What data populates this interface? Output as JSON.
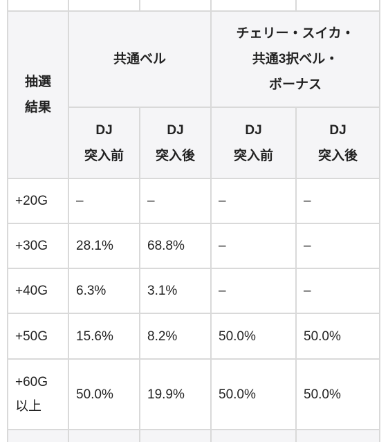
{
  "header": {
    "result_label": "抽選\n結果",
    "group_common_bell": "共通ベル",
    "group_cherry_etc": "チェリー・スイカ・\n共通3択ベル・\nボーナス",
    "sub_labels": [
      "DJ\n突入前",
      "DJ\n突入後",
      "DJ\n突入前",
      "DJ\n突入後"
    ]
  },
  "rows": [
    {
      "label": "+20G",
      "values": [
        "–",
        "–",
        "–",
        "–"
      ]
    },
    {
      "label": "+30G",
      "values": [
        "28.1%",
        "68.8%",
        "–",
        "–"
      ]
    },
    {
      "label": "+40G",
      "values": [
        "6.3%",
        "3.1%",
        "–",
        "–"
      ]
    },
    {
      "label": "+50G",
      "values": [
        "15.6%",
        "8.2%",
        "50.0%",
        "50.0%"
      ]
    },
    {
      "label": "+60G\n以上",
      "values": [
        "50.0%",
        "19.9%",
        "50.0%",
        "50.0%"
      ]
    }
  ]
}
